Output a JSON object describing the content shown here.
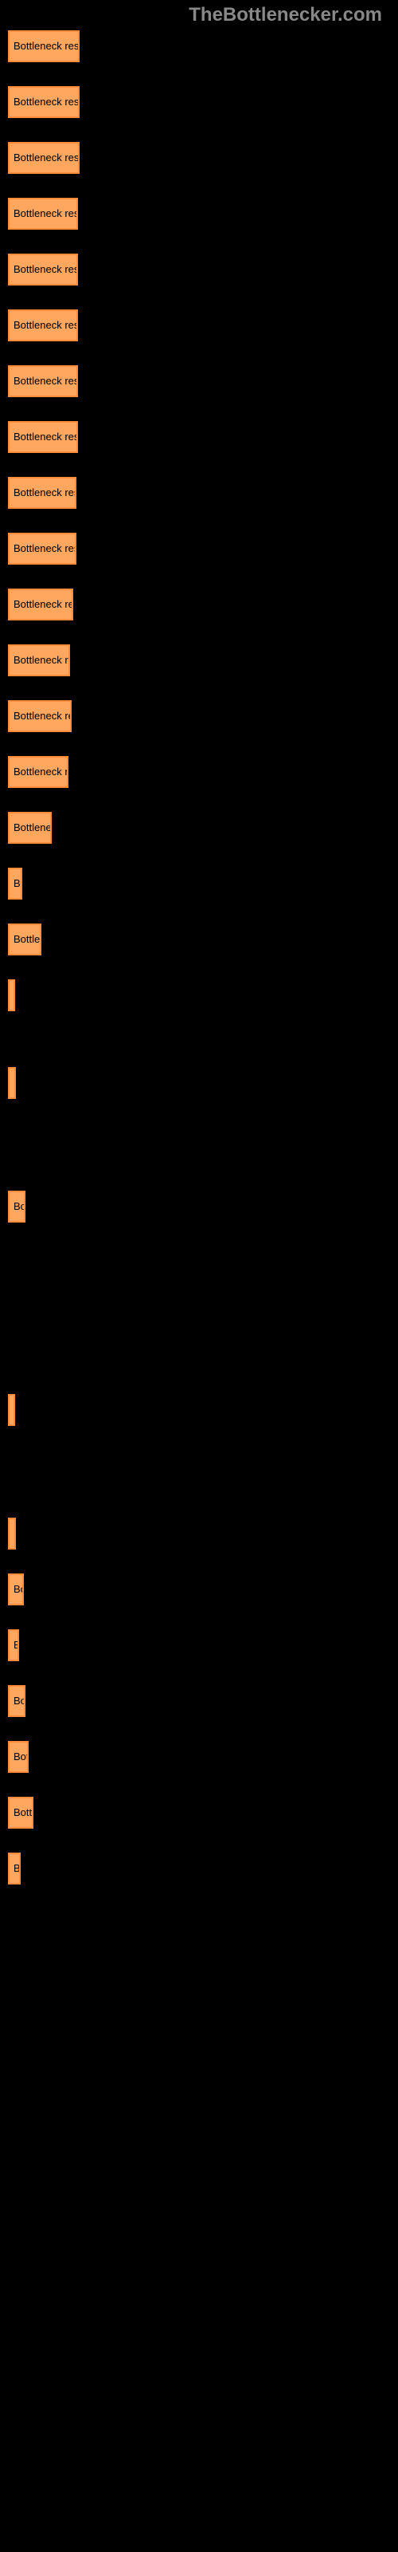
{
  "header": "TheBottlenecker.com",
  "chart": {
    "type": "bar",
    "background_color": "#000000",
    "bar_color": "#ffa65f",
    "bar_border_color": "#ff8c3a",
    "text_color": "#000000",
    "header_color": "#888888",
    "bars": [
      {
        "label": "Bottleneck resu",
        "width": 90,
        "spacing": 15
      },
      {
        "label": "Bottleneck resu",
        "width": 90,
        "spacing": 15
      },
      {
        "label": "Bottleneck resu",
        "width": 90,
        "spacing": 15
      },
      {
        "label": "Bottleneck res",
        "width": 88,
        "spacing": 15
      },
      {
        "label": "Bottleneck res",
        "width": 88,
        "spacing": 15
      },
      {
        "label": "Bottleneck res",
        "width": 88,
        "spacing": 15
      },
      {
        "label": "Bottleneck res",
        "width": 88,
        "spacing": 15
      },
      {
        "label": "Bottleneck res",
        "width": 88,
        "spacing": 15
      },
      {
        "label": "Bottleneck res",
        "width": 86,
        "spacing": 15
      },
      {
        "label": "Bottleneck res",
        "width": 86,
        "spacing": 15
      },
      {
        "label": "Bottleneck re",
        "width": 82,
        "spacing": 15
      },
      {
        "label": "Bottleneck r",
        "width": 78,
        "spacing": 15
      },
      {
        "label": "Bottleneck re",
        "width": 80,
        "spacing": 15
      },
      {
        "label": "Bottleneck r",
        "width": 76,
        "spacing": 15
      },
      {
        "label": "Bottlene",
        "width": 55,
        "spacing": 15
      },
      {
        "label": "Bo",
        "width": 18,
        "spacing": 15
      },
      {
        "label": "Bottle",
        "width": 42,
        "spacing": 15
      },
      {
        "label": "",
        "width": 8,
        "spacing": 55
      },
      {
        "label": "",
        "width": 10,
        "spacing": 100
      },
      {
        "label": "Bo",
        "width": 22,
        "spacing": 200
      },
      {
        "label": "",
        "width": 8,
        "spacing": 100
      },
      {
        "label": "",
        "width": 10,
        "spacing": 15
      },
      {
        "label": "Bo",
        "width": 20,
        "spacing": 15
      },
      {
        "label": "B",
        "width": 14,
        "spacing": 15
      },
      {
        "label": "Bo",
        "width": 22,
        "spacing": 15
      },
      {
        "label": "Bot",
        "width": 26,
        "spacing": 15
      },
      {
        "label": "Bott",
        "width": 32,
        "spacing": 15
      },
      {
        "label": "B",
        "width": 16,
        "spacing": 15
      }
    ]
  }
}
